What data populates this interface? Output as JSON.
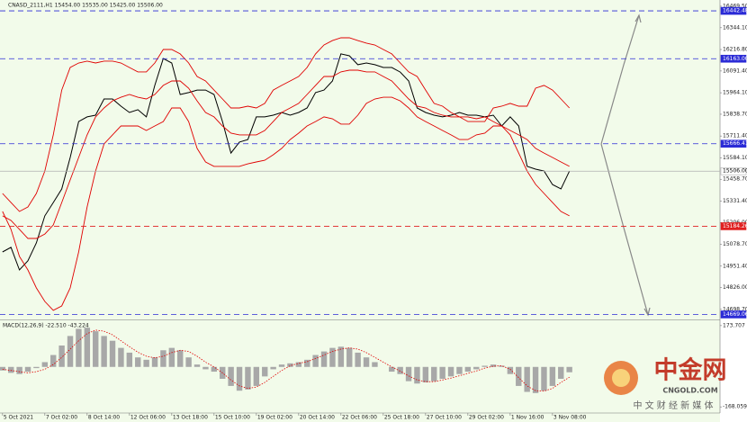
{
  "chart_data": [
    {
      "type": "line",
      "title": "CNASD_2111,H1  15454.00 15535.00 15425.00 15506.00",
      "x": [
        0,
        1,
        2,
        3,
        4,
        5,
        6,
        7,
        8,
        9,
        10,
        11,
        12,
        13,
        14,
        15,
        16,
        17,
        18,
        19,
        20,
        21,
        22,
        23,
        24,
        25,
        26,
        27,
        28,
        29,
        30,
        31,
        32,
        33,
        34,
        35,
        36,
        37,
        38,
        39,
        40,
        41,
        42,
        43,
        44,
        45,
        46,
        47,
        48,
        49,
        50,
        51,
        52,
        53,
        54,
        55,
        56,
        57,
        58,
        59,
        60,
        61,
        62,
        63,
        64,
        65,
        66,
        67
      ],
      "series": [
        {
          "color": "#000000",
          "values": [
            15034,
            15061,
            14929,
            14982,
            15087,
            15245,
            15323,
            15402,
            15586,
            15796,
            15823,
            15833,
            15928,
            15928,
            15886,
            15849,
            15865,
            15823,
            16007,
            16164,
            16138,
            15954,
            15965,
            15980,
            15980,
            15954,
            15796,
            15612,
            15676,
            15691,
            15823,
            15823,
            15833,
            15849,
            15833,
            15849,
            15875,
            15965,
            15980,
            16033,
            16191,
            16180,
            16128,
            16138,
            16128,
            16112,
            16112,
            16085,
            16033,
            15875,
            15849,
            15833,
            15823,
            15833,
            15849,
            15833,
            15833,
            15823,
            15833,
            15770,
            15823,
            15770,
            15534,
            15518,
            15507,
            15428,
            15402,
            15506
          ]
        },
        {
          "color": "#e00000",
          "values": [
            15376,
            15323,
            15271,
            15297,
            15376,
            15507,
            15718,
            15980,
            16112,
            16138,
            16149,
            16138,
            16149,
            16149,
            16138,
            16112,
            16086,
            16086,
            16138,
            16217,
            16217,
            16191,
            16138,
            16059,
            16033,
            15980,
            15928,
            15875,
            15875,
            15886,
            15875,
            15902,
            15980,
            16007,
            16033,
            16059,
            16112,
            16191,
            16243,
            16269,
            16285,
            16285,
            16269,
            16254,
            16243,
            16217,
            16191,
            16138,
            16086,
            16059,
            15980,
            15902,
            15886,
            15849,
            15823,
            15796,
            15796,
            15796,
            15875,
            15886,
            15902,
            15886,
            15886,
            15991,
            16007,
            15980,
            15928,
            15875
          ]
        },
        {
          "color": "#e00000",
          "values": [
            15245,
            15218,
            15166,
            15113,
            15113,
            15139,
            15192,
            15323,
            15455,
            15586,
            15718,
            15823,
            15875,
            15917,
            15938,
            15954,
            15938,
            15928,
            15954,
            16007,
            16033,
            16033,
            15991,
            15917,
            15849,
            15823,
            15770,
            15728,
            15718,
            15718,
            15718,
            15744,
            15796,
            15849,
            15875,
            15902,
            15954,
            16007,
            16059,
            16059,
            16086,
            16096,
            16096,
            16086,
            16086,
            16059,
            16033,
            15980,
            15928,
            15886,
            15875,
            15849,
            15833,
            15823,
            15823,
            15823,
            15812,
            15823,
            15796,
            15770,
            15744,
            15718,
            15691,
            15639,
            15612,
            15586,
            15560,
            15534
          ]
        },
        {
          "color": "#e00000",
          "values": [
            15271,
            15166,
            15008,
            14929,
            14824,
            14745,
            14693,
            14719,
            14824,
            15034,
            15297,
            15507,
            15665,
            15718,
            15770,
            15770,
            15770,
            15744,
            15770,
            15796,
            15875,
            15875,
            15796,
            15639,
            15560,
            15534,
            15534,
            15534,
            15534,
            15549,
            15560,
            15570,
            15602,
            15639,
            15691,
            15728,
            15770,
            15796,
            15823,
            15812,
            15781,
            15781,
            15833,
            15902,
            15928,
            15938,
            15938,
            15917,
            15875,
            15823,
            15796,
            15770,
            15744,
            15718,
            15691,
            15691,
            15718,
            15728,
            15770,
            15770,
            15718,
            15612,
            15507,
            15429,
            15376,
            15323,
            15271,
            15245
          ]
        }
      ],
      "xlim": [
        -0.3,
        84.8
      ],
      "ylim": [
        14640,
        16506
      ],
      "yticks": [
        {
          "value": 16469.5,
          "label": "16469.50"
        },
        {
          "value": 16344.1,
          "label": "16344.10"
        },
        {
          "value": 16216.8,
          "label": "16216.80"
        },
        {
          "value": 16091.4,
          "label": "16091.40"
        },
        {
          "value": 15964.1,
          "label": "15964.10"
        },
        {
          "value": 15838.7,
          "label": "15838.70"
        },
        {
          "value": 15711.4,
          "label": "15711.40"
        },
        {
          "value": 15584.1,
          "label": "15584.10"
        },
        {
          "value": 15458.7,
          "label": "15458.70"
        },
        {
          "value": 15331.4,
          "label": "15331.40"
        },
        {
          "value": 15206,
          "label": "15206.00"
        },
        {
          "value": 15078.7,
          "label": "15078.70"
        },
        {
          "value": 14951.4,
          "label": "14951.40"
        },
        {
          "value": 14826,
          "label": "14826.00"
        },
        {
          "value": 14698.7,
          "label": "14698.70"
        }
      ],
      "levels": [
        {
          "value": 16442.48,
          "label": "16442.48",
          "color": "#2b2bd6"
        },
        {
          "value": 16163,
          "label": "16163.00",
          "color": "#2b2bd6"
        },
        {
          "value": 15666.41,
          "label": "15666.41",
          "color": "#2b2bd6"
        },
        {
          "value": 15506,
          "label": "15506.00",
          "color": "#b0b0b0"
        },
        {
          "value": 15184.26,
          "label": "15184.26",
          "color": "#e02020"
        },
        {
          "value": 14669.06,
          "label": "14669.06",
          "color": "#2b2bd6"
        }
      ],
      "xticks": [
        {
          "value": 0,
          "label": "5 Oct 2021"
        },
        {
          "value": 5,
          "label": "7 Oct 02:00"
        },
        {
          "value": 10,
          "label": "8 Oct 14:00"
        },
        {
          "value": 15,
          "label": "12 Oct 06:00"
        },
        {
          "value": 20,
          "label": "13 Oct 18:00"
        },
        {
          "value": 25,
          "label": "15 Oct 10:00"
        },
        {
          "value": 30,
          "label": "19 Oct 02:00"
        },
        {
          "value": 35,
          "label": "20 Oct 14:00"
        },
        {
          "value": 40,
          "label": "22 Oct 06:00"
        },
        {
          "value": 45,
          "label": "25 Oct 18:00"
        },
        {
          "value": 50,
          "label": "27 Oct 10:00"
        },
        {
          "value": 55,
          "label": "29 Oct 02:00"
        },
        {
          "value": 60,
          "label": "1 Nov 16:00"
        },
        {
          "value": 65,
          "label": "3 Nov 08:00"
        }
      ]
    },
    {
      "type": "bar",
      "title": "MACD(12,26,9) -22.510 -43.224",
      "x": [
        0,
        1,
        2,
        3,
        4,
        5,
        6,
        7,
        8,
        9,
        10,
        11,
        12,
        13,
        14,
        15,
        16,
        17,
        18,
        19,
        20,
        21,
        22,
        23,
        24,
        25,
        26,
        27,
        28,
        29,
        30,
        31,
        32,
        33,
        34,
        35,
        36,
        37,
        38,
        39,
        40,
        41,
        42,
        43,
        44,
        45,
        46,
        47,
        48,
        49,
        50,
        51,
        52,
        53,
        54,
        55,
        56,
        57,
        58,
        59,
        60,
        61,
        62,
        63,
        64,
        65,
        66,
        67
      ],
      "series": [
        {
          "color": "#a8a8a8",
          "values": [
            -15,
            -25,
            -30,
            -20,
            -5,
            20,
            50,
            90,
            130,
            160,
            165,
            150,
            130,
            110,
            80,
            60,
            40,
            30,
            40,
            70,
            80,
            70,
            40,
            10,
            -10,
            -20,
            -50,
            -80,
            -100,
            -95,
            -80,
            -40,
            -10,
            10,
            15,
            20,
            30,
            50,
            65,
            80,
            85,
            80,
            60,
            40,
            20,
            0,
            -20,
            -30,
            -60,
            -70,
            -65,
            -60,
            -50,
            -40,
            -30,
            -20,
            -10,
            5,
            10,
            5,
            -30,
            -80,
            -105,
            -110,
            -100,
            -80,
            -50,
            -22.51
          ]
        },
        {
          "color": "#e00000",
          "values": [
            -10,
            -15,
            -20,
            -25,
            -20,
            -10,
            10,
            40,
            75,
            110,
            140,
            155,
            150,
            135,
            110,
            85,
            62,
            45,
            38,
            45,
            60,
            70,
            65,
            45,
            20,
            0,
            -25,
            -55,
            -80,
            -90,
            -85,
            -65,
            -40,
            -15,
            5,
            15,
            22,
            35,
            50,
            65,
            75,
            80,
            75,
            60,
            40,
            20,
            0,
            -18,
            -38,
            -55,
            -62,
            -62,
            -55,
            -47,
            -37,
            -27,
            -17,
            -5,
            3,
            5,
            -10,
            -45,
            -80,
            -100,
            -102,
            -90,
            -65,
            -43.224
          ]
        }
      ],
      "xlim": [
        -0.3,
        84.8
      ],
      "ylim": [
        -193.8,
        192.1
      ],
      "yticks": [
        173.707,
        -168.059
      ]
    }
  ],
  "watermark": {
    "brand": "中金网",
    "site": "CNGOLD.COM",
    "slogan": "中 文 财 经 新 媒 体"
  }
}
